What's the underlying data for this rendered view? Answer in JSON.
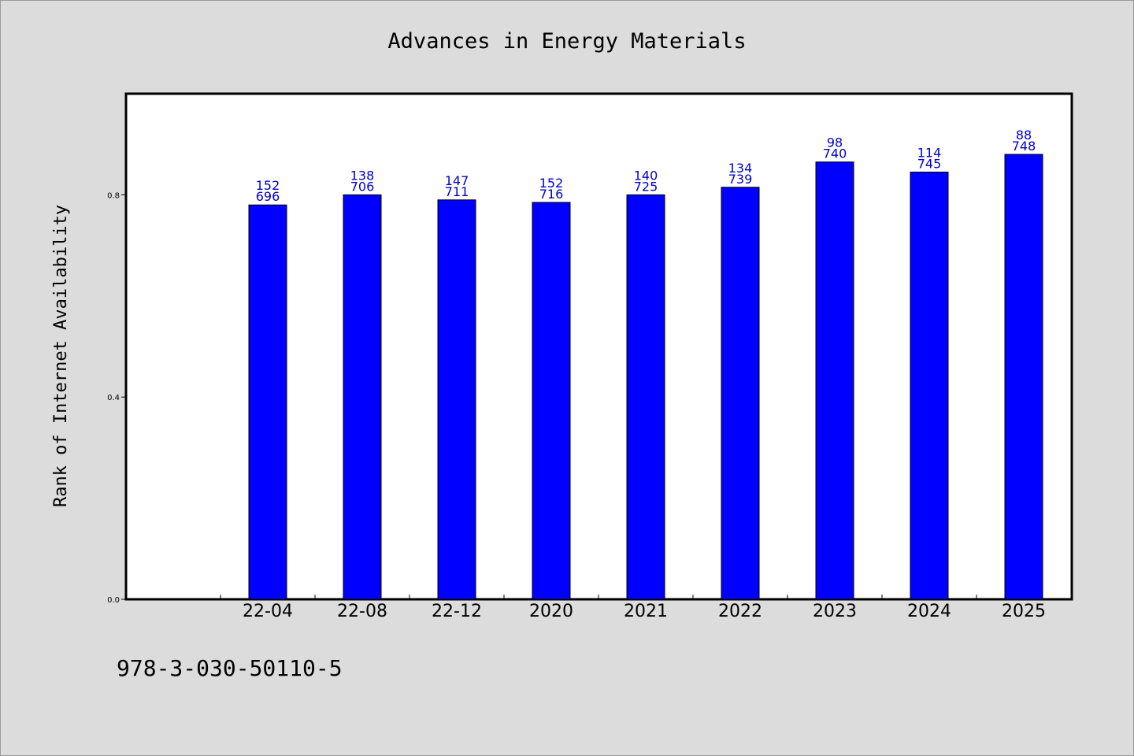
{
  "chart_data": {
    "type": "bar",
    "title": "Advances in Energy Materials",
    "ylabel": "Rank of Internet Availability",
    "xlabel": "",
    "categories": [
      "22-04",
      "22-08",
      "22-12",
      "2020",
      "2021",
      "2022",
      "2023",
      "2024",
      "2025"
    ],
    "values": [
      0.78,
      0.8,
      0.79,
      0.785,
      0.8,
      0.815,
      0.865,
      0.845,
      0.88
    ],
    "bar_labels_top": [
      "152",
      "138",
      "147",
      "152",
      "140",
      "134",
      "98",
      "114",
      "88"
    ],
    "bar_labels_bottom": [
      "696",
      "706",
      "711",
      "716",
      "725",
      "739",
      "740",
      "745",
      "748"
    ],
    "y_ticks": [
      0.0,
      0.4,
      0.8
    ],
    "y_tick_labels": [
      "0.0",
      "0.4",
      "0.8"
    ],
    "ylim": [
      0.0,
      1.0
    ],
    "grid": false,
    "legend": "none",
    "colors": {
      "bar_fill": "#0000ff",
      "bar_stroke": "#000000",
      "label": "#0000cc",
      "background": "#dcdcdc",
      "plot_background": "#ffffff"
    }
  },
  "footer": {
    "isbn": "978-3-030-50110-5"
  }
}
